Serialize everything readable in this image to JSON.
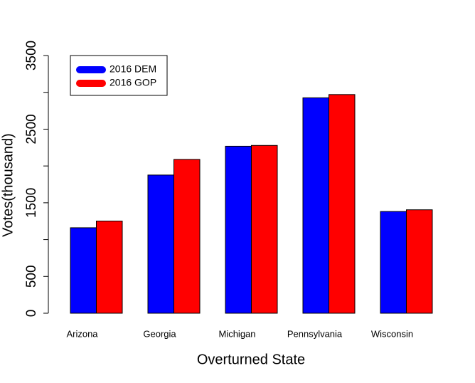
{
  "chart_data": {
    "type": "bar",
    "xlabel": "Overturned State",
    "ylabel": "Votes(thousand)",
    "categories": [
      "Arizona",
      "Georgia",
      "Michigan",
      "Pennsylvania",
      "Wisconsin"
    ],
    "series": [
      {
        "name": "2016 DEM",
        "color": "#0000ff",
        "values": [
          1161,
          1877,
          2268,
          2926,
          1382
        ]
      },
      {
        "name": "2016 GOP",
        "color": "#ff0000",
        "values": [
          1252,
          2089,
          2279,
          2970,
          1405
        ]
      }
    ],
    "ylim": [
      0,
      3500
    ],
    "yticks": [
      0,
      500,
      {
        "value": 1000,
        "label": null
      },
      1500,
      {
        "value": 2000,
        "label": null
      },
      2500,
      {
        "value": 3000,
        "label": null
      },
      3500
    ],
    "legend": "top-left"
  }
}
